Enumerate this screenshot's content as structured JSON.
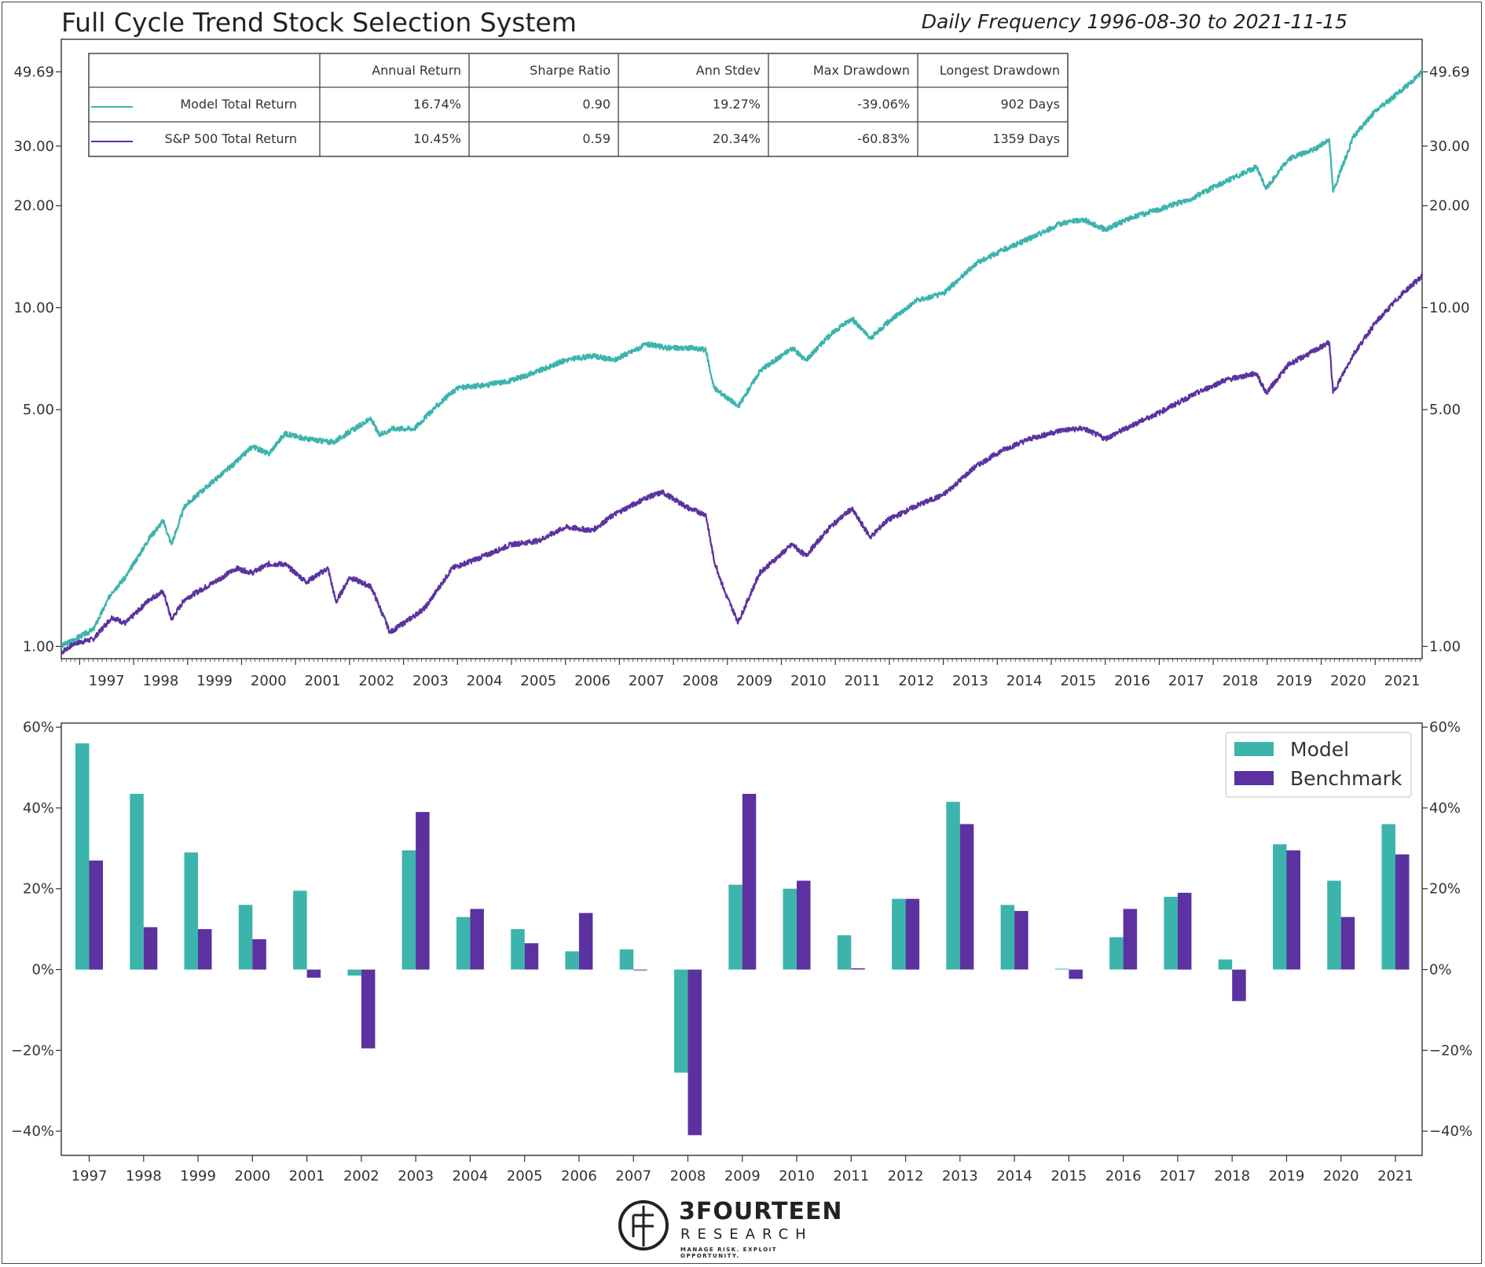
{
  "header": {
    "title": "Full Cycle Trend Stock Selection System",
    "subtitle": "Daily Frequency 1996-08-30 to 2021-11-15"
  },
  "stats_table": {
    "columns": [
      "",
      "Annual Return",
      "Sharpe Ratio",
      "Ann Stdev",
      "Max Drawdown",
      "Longest Drawdown"
    ],
    "rows": [
      {
        "label": "Model Total Return",
        "color": "#3cb4ac",
        "cells": [
          "16.74%",
          "0.90",
          "19.27%",
          "-39.06%",
          "902 Days"
        ]
      },
      {
        "label": "S&P 500 Total Return",
        "color": "#5b32a0",
        "cells": [
          "10.45%",
          "0.59",
          "20.34%",
          "-60.83%",
          "1359 Days"
        ]
      }
    ]
  },
  "colors": {
    "model": "#3cb4ac",
    "benchmark": "#5b32a0",
    "axis": "#333333"
  },
  "chart_data": [
    {
      "type": "line",
      "yscale": "log",
      "ylim": [
        0.92,
        62
      ],
      "y_ticks": [
        1.0,
        5.0,
        10.0,
        20.0,
        30.0,
        49.69
      ],
      "y_tick_labels": [
        "1.00",
        "5.00",
        "10.00",
        "20.00",
        "30.00",
        "49.69"
      ],
      "x_range": [
        1996.66,
        2021.87
      ],
      "x_ticks": [
        "1997",
        "1998",
        "1999",
        "2000",
        "2001",
        "2002",
        "2003",
        "2004",
        "2005",
        "2006",
        "2007",
        "2008",
        "2009",
        "2010",
        "2011",
        "2012",
        "2013",
        "2014",
        "2015",
        "2016",
        "2017",
        "2018",
        "2019",
        "2020",
        "2021"
      ],
      "series": [
        {
          "name": "Model Total Return",
          "points": [
            [
              1996.66,
              1.0
            ],
            [
              1996.9,
              1.05
            ],
            [
              1997.25,
              1.12
            ],
            [
              1997.6,
              1.45
            ],
            [
              1997.85,
              1.6
            ],
            [
              1998.3,
              2.1
            ],
            [
              1998.55,
              2.35
            ],
            [
              1998.7,
              2.0
            ],
            [
              1998.95,
              2.6
            ],
            [
              1999.5,
              3.1
            ],
            [
              1999.9,
              3.5
            ],
            [
              2000.2,
              3.9
            ],
            [
              2000.5,
              3.7
            ],
            [
              2000.8,
              4.25
            ],
            [
              2001.2,
              4.1
            ],
            [
              2001.7,
              4.0
            ],
            [
              2002.0,
              4.3
            ],
            [
              2002.4,
              4.7
            ],
            [
              2002.55,
              4.2
            ],
            [
              2002.8,
              4.4
            ],
            [
              2003.2,
              4.4
            ],
            [
              2003.6,
              5.1
            ],
            [
              2004.0,
              5.8
            ],
            [
              2004.5,
              5.9
            ],
            [
              2005.0,
              6.1
            ],
            [
              2005.5,
              6.5
            ],
            [
              2006.0,
              7.0
            ],
            [
              2006.5,
              7.2
            ],
            [
              2006.9,
              7.0
            ],
            [
              2007.5,
              7.8
            ],
            [
              2007.9,
              7.6
            ],
            [
              2008.3,
              7.6
            ],
            [
              2008.6,
              7.5
            ],
            [
              2008.75,
              5.8
            ],
            [
              2008.95,
              5.5
            ],
            [
              2009.2,
              5.1
            ],
            [
              2009.6,
              6.5
            ],
            [
              2010.2,
              7.6
            ],
            [
              2010.45,
              7.0
            ],
            [
              2010.9,
              8.3
            ],
            [
              2011.3,
              9.3
            ],
            [
              2011.65,
              8.1
            ],
            [
              2011.95,
              9.0
            ],
            [
              2012.5,
              10.5
            ],
            [
              2013.0,
              11.0
            ],
            [
              2013.6,
              13.5
            ],
            [
              2014.1,
              14.8
            ],
            [
              2014.6,
              16.0
            ],
            [
              2015.2,
              17.8
            ],
            [
              2015.6,
              18.2
            ],
            [
              2016.0,
              17.0
            ],
            [
              2016.5,
              18.5
            ],
            [
              2017.0,
              19.5
            ],
            [
              2017.6,
              21.0
            ],
            [
              2018.2,
              23.5
            ],
            [
              2018.8,
              26.0
            ],
            [
              2018.98,
              22.5
            ],
            [
              2019.4,
              27.5
            ],
            [
              2019.9,
              29.5
            ],
            [
              2020.15,
              31.5
            ],
            [
              2020.22,
              22.0
            ],
            [
              2020.6,
              32.0
            ],
            [
              2021.0,
              38.0
            ],
            [
              2021.5,
              44.0
            ],
            [
              2021.87,
              49.69
            ]
          ]
        },
        {
          "name": "S&P 500 Total Return",
          "points": [
            [
              1996.66,
              0.96
            ],
            [
              1996.9,
              1.02
            ],
            [
              1997.25,
              1.05
            ],
            [
              1997.6,
              1.22
            ],
            [
              1997.85,
              1.17
            ],
            [
              1998.3,
              1.38
            ],
            [
              1998.55,
              1.45
            ],
            [
              1998.7,
              1.2
            ],
            [
              1998.95,
              1.38
            ],
            [
              1999.5,
              1.55
            ],
            [
              1999.9,
              1.7
            ],
            [
              2000.2,
              1.65
            ],
            [
              2000.5,
              1.75
            ],
            [
              2000.8,
              1.75
            ],
            [
              2001.2,
              1.55
            ],
            [
              2001.6,
              1.7
            ],
            [
              2001.75,
              1.35
            ],
            [
              2002.0,
              1.6
            ],
            [
              2002.4,
              1.5
            ],
            [
              2002.75,
              1.1
            ],
            [
              2003.1,
              1.2
            ],
            [
              2003.4,
              1.3
            ],
            [
              2003.9,
              1.7
            ],
            [
              2004.5,
              1.85
            ],
            [
              2005.0,
              2.0
            ],
            [
              2005.5,
              2.05
            ],
            [
              2006.0,
              2.25
            ],
            [
              2006.5,
              2.2
            ],
            [
              2006.9,
              2.45
            ],
            [
              2007.5,
              2.75
            ],
            [
              2007.8,
              2.85
            ],
            [
              2008.3,
              2.55
            ],
            [
              2008.6,
              2.45
            ],
            [
              2008.75,
              1.8
            ],
            [
              2008.95,
              1.45
            ],
            [
              2009.2,
              1.18
            ],
            [
              2009.6,
              1.65
            ],
            [
              2010.2,
              2.0
            ],
            [
              2010.45,
              1.85
            ],
            [
              2010.9,
              2.25
            ],
            [
              2011.3,
              2.55
            ],
            [
              2011.65,
              2.1
            ],
            [
              2011.95,
              2.35
            ],
            [
              2012.5,
              2.6
            ],
            [
              2013.0,
              2.8
            ],
            [
              2013.6,
              3.4
            ],
            [
              2014.1,
              3.8
            ],
            [
              2014.6,
              4.1
            ],
            [
              2015.2,
              4.35
            ],
            [
              2015.6,
              4.4
            ],
            [
              2016.0,
              4.1
            ],
            [
              2016.5,
              4.5
            ],
            [
              2017.0,
              4.9
            ],
            [
              2017.6,
              5.5
            ],
            [
              2018.2,
              6.1
            ],
            [
              2018.8,
              6.4
            ],
            [
              2018.98,
              5.6
            ],
            [
              2019.4,
              6.8
            ],
            [
              2019.9,
              7.5
            ],
            [
              2020.15,
              7.9
            ],
            [
              2020.22,
              5.6
            ],
            [
              2020.6,
              7.3
            ],
            [
              2021.0,
              9.0
            ],
            [
              2021.5,
              11.0
            ],
            [
              2021.87,
              12.4
            ]
          ]
        }
      ]
    },
    {
      "type": "bar",
      "categories": [
        "1997",
        "1998",
        "1999",
        "2000",
        "2001",
        "2002",
        "2003",
        "2004",
        "2005",
        "2006",
        "2007",
        "2008",
        "2009",
        "2010",
        "2011",
        "2012",
        "2013",
        "2014",
        "2015",
        "2016",
        "2017",
        "2018",
        "2019",
        "2020",
        "2021"
      ],
      "series": [
        {
          "name": "Model",
          "values": [
            56,
            43.5,
            29,
            16,
            19.5,
            -1.5,
            29.5,
            13,
            10,
            4.5,
            5,
            -25.5,
            21,
            20,
            8.5,
            17.5,
            41.5,
            16,
            0.2,
            8,
            18,
            2.5,
            31,
            22,
            36
          ]
        },
        {
          "name": "Benchmark",
          "values": [
            27,
            10.5,
            10,
            7.5,
            -2,
            -19.5,
            39,
            15,
            6.5,
            14,
            -0.2,
            -41,
            43.5,
            22,
            0.3,
            17.5,
            36,
            14.5,
            -2.3,
            15,
            19,
            -7.8,
            29.5,
            13,
            28.5
          ]
        }
      ],
      "ylim": [
        -46,
        61
      ],
      "y_ticks": [
        -40,
        -20,
        0,
        20,
        40,
        60
      ],
      "y_tick_labels": [
        "−40%",
        "−20%",
        "0%",
        "20%",
        "40%",
        "60%"
      ],
      "legend_position": "top-right"
    }
  ],
  "logo": {
    "name": "3FOURTEEN",
    "sub": "RESEARCH",
    "tag": "MANAGE RISK. EXPLOIT OPPORTUNITY."
  }
}
